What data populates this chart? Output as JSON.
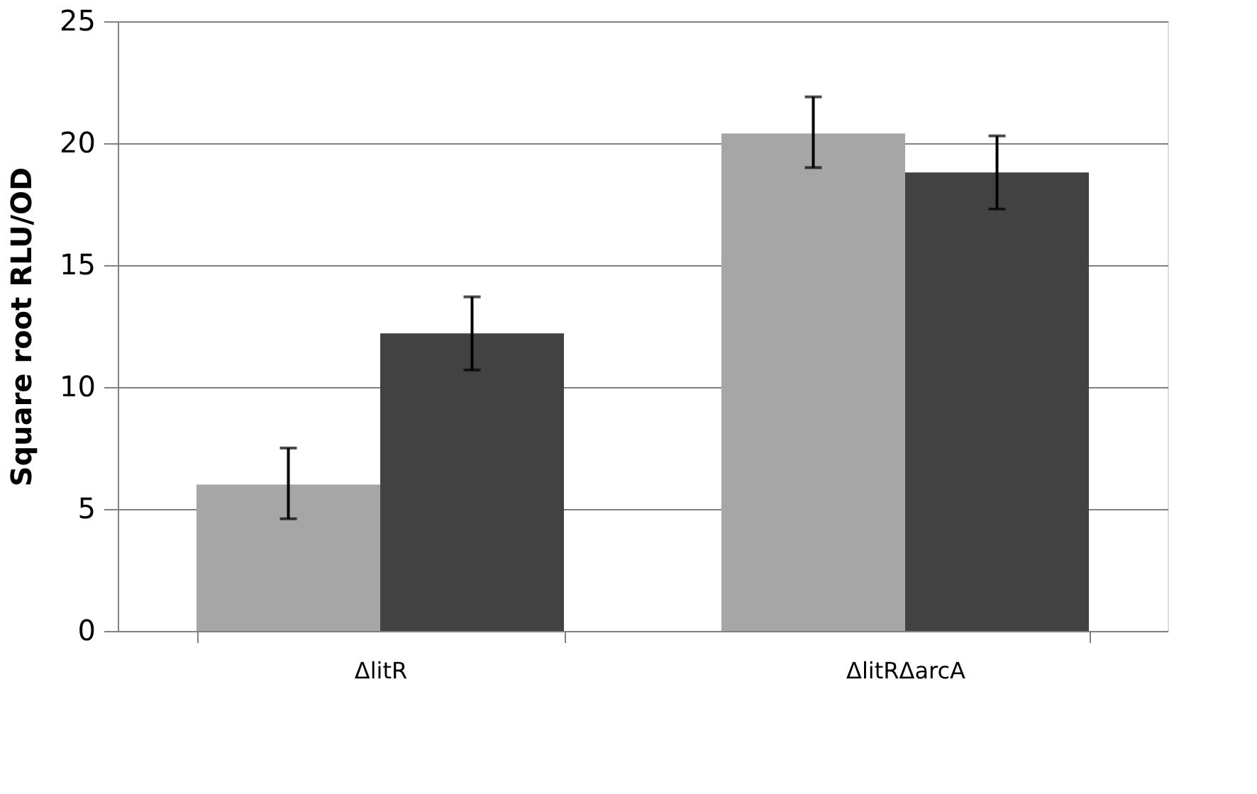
{
  "chart_data": {
    "type": "bar",
    "ylabel": "Square root RLU/OD",
    "categories": [
      "ΔlitR",
      "ΔlitRΔarcA"
    ],
    "series": [
      {
        "color": "#a6a6a6",
        "values": [
          6.0,
          20.4
        ],
        "errors": [
          [
            4.6,
            7.5
          ],
          [
            19.0,
            21.9
          ]
        ]
      },
      {
        "color": "#424242",
        "values": [
          12.2,
          18.8
        ],
        "errors": [
          [
            10.7,
            13.7
          ],
          [
            17.3,
            20.3
          ]
        ]
      }
    ],
    "ylim": [
      0,
      25
    ],
    "yticks": [
      0,
      5,
      10,
      15,
      20,
      25
    ],
    "grid": "y",
    "legend": false
  }
}
